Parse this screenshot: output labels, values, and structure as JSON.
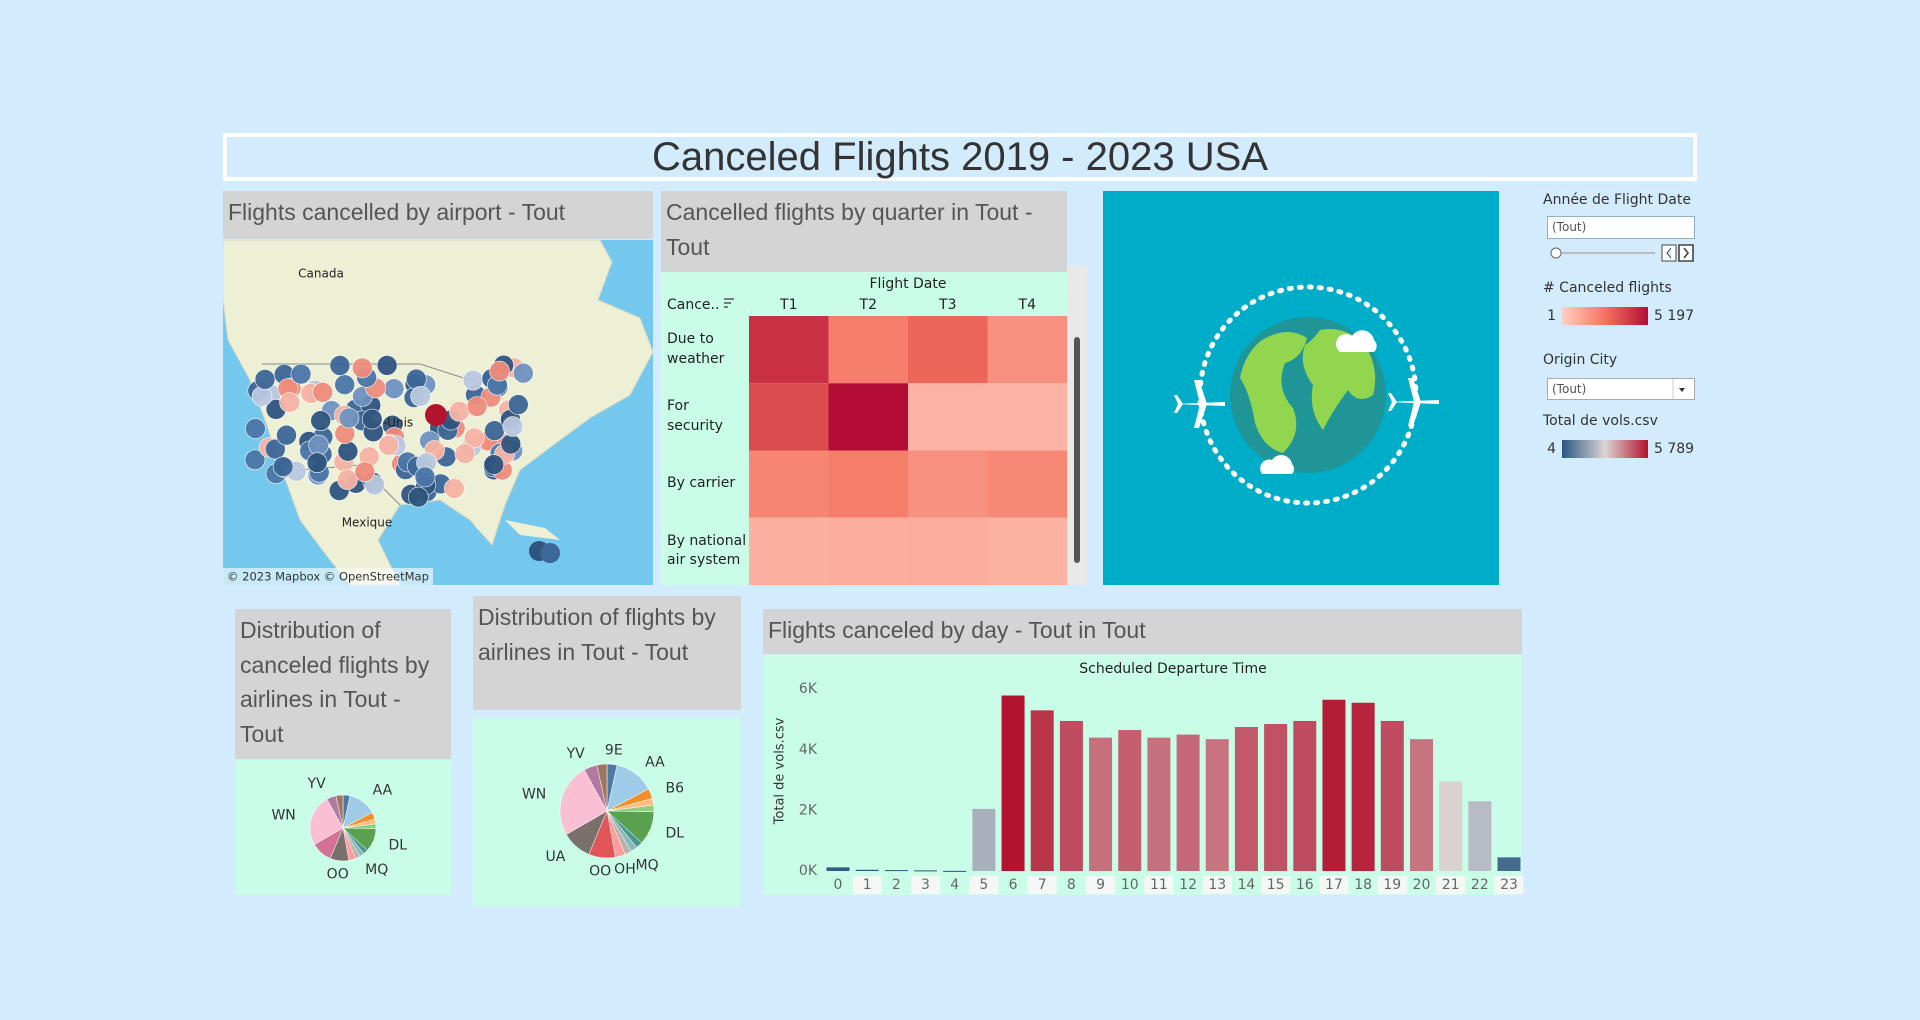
{
  "dashboard": {
    "title": "Canceled Flights 2019 - 2023 USA",
    "map": {
      "title": "Flights cancelled by airport - Tout",
      "labels": [
        "Canada",
        "-Unis",
        "Mexique"
      ],
      "attribution": "© 2023 Mapbox © OpenStreetMap"
    },
    "filters": [
      {
        "label": "Année de Flight Date",
        "value": "(Tout)"
      },
      {
        "label": "Origin City",
        "value": "(Tout)"
      }
    ]
  },
  "chart_data": [
    {
      "type": "heatmap",
      "title": "Cancelled flights by quarter in Tout - Tout",
      "x_label": "Flight Date",
      "y_label": "Cance..",
      "x": [
        "T1",
        "T2",
        "T3",
        "T4"
      ],
      "categories": [
        "Due to weather",
        "For security",
        "By carrier",
        "By national air system"
      ],
      "values": [
        [
          4300,
          2300,
          2900,
          1800
        ],
        [
          3600,
          5197,
          800,
          800
        ],
        [
          2100,
          2300,
          1800,
          2000
        ],
        [
          900,
          950,
          1000,
          850
        ]
      ],
      "color_legend": {
        "title": "# Canceled flights",
        "ticks": [
          1,
          {
            "value": 5197,
            "label": "5 197"
          }
        ],
        "colors": [
          "#ffd0c4",
          "#f4735f",
          "#b30d36"
        ]
      }
    },
    {
      "type": "pie",
      "title": "Distribution of canceled flights by airlines in Tout - Tout",
      "categories": [
        null,
        "AA",
        null,
        null,
        null,
        "DL",
        null,
        null,
        "MQ",
        null,
        "OO",
        null,
        "WN",
        "YV",
        null
      ],
      "values": [
        3,
        12,
        3,
        2,
        2,
        10,
        2,
        2,
        2,
        3,
        8,
        9,
        22,
        4,
        3
      ],
      "colors": [
        "#4e79a7",
        "#a0cbe8",
        "#f28e2b",
        "#ffbe7d",
        "#8cd17d",
        "#59a14f",
        "#499894",
        "#86bcb6",
        "#bab0ac",
        "#ff9d9a",
        "#79706e",
        "#d37295",
        "#fabfd2",
        "#b07aa1",
        "#9d7660"
      ]
    },
    {
      "type": "pie",
      "title": "Distribution of flights by airlines in Tout - Tout",
      "categories": [
        "9E",
        "AA",
        "B6",
        null,
        null,
        "DL",
        null,
        null,
        "MQ",
        "OH",
        "OO",
        "UA",
        "WN",
        "YV",
        null
      ],
      "values": [
        3,
        12,
        3,
        2,
        2,
        10,
        2,
        2,
        2,
        3,
        8,
        9,
        22,
        4,
        3
      ],
      "colors": [
        "#4e79a7",
        "#a0cbe8",
        "#f28e2b",
        "#ffbe7d",
        "#8cd17d",
        "#59a14f",
        "#499894",
        "#86bcb6",
        "#bab0ac",
        "#ff9d9a",
        "#e15759",
        "#79706e",
        "#fabfd2",
        "#b07aa1",
        "#9d7660"
      ]
    },
    {
      "type": "bar",
      "title": "Flights canceled by day - Tout in Tout",
      "subtitle": "Scheduled Departure Time",
      "ylabel": "Total de vols.csv",
      "categories": [
        "0",
        "1",
        "2",
        "3",
        "4",
        "5",
        "6",
        "7",
        "8",
        "9",
        "10",
        "11",
        "12",
        "13",
        "14",
        "15",
        "16",
        "17",
        "18",
        "19",
        "20",
        "21",
        "22",
        "23"
      ],
      "values": [
        120,
        40,
        30,
        20,
        4,
        2050,
        5789,
        5300,
        4950,
        4400,
        4650,
        4400,
        4500,
        4350,
        4750,
        4850,
        4950,
        5650,
        5550,
        4950,
        4350,
        2950,
        2300,
        450
      ],
      "ylim": [
        0,
        6400
      ],
      "yticks": [
        {
          "value": 0,
          "label": "0K"
        },
        {
          "value": 2000,
          "label": "2K"
        },
        {
          "value": 4000,
          "label": "4K"
        },
        {
          "value": 6000,
          "label": "6K"
        }
      ],
      "grid": false,
      "color_legend": {
        "title": "Total de vols.csv",
        "ticks": [
          4,
          {
            "value": 5789,
            "label": "5 789"
          }
        ],
        "colors": [
          "#2a5783",
          "#dcd5d3",
          "#b3132e"
        ]
      }
    }
  ]
}
